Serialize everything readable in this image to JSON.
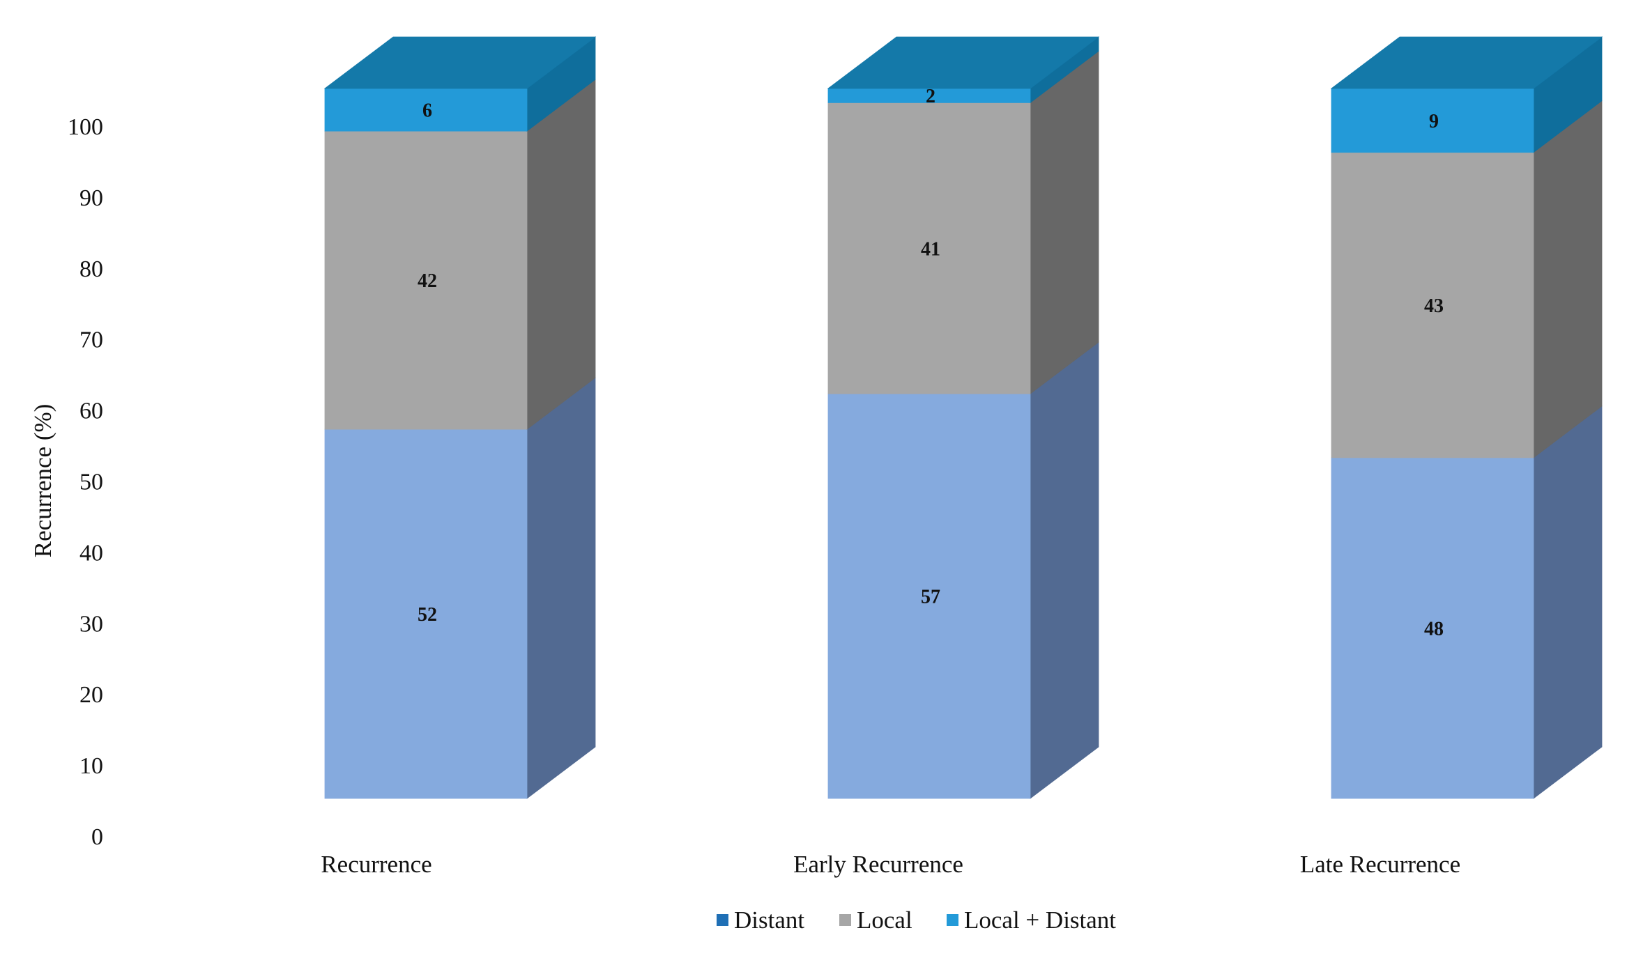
{
  "chart_data": {
    "type": "bar",
    "stacked": true,
    "three_d": true,
    "title": "",
    "xlabel": "",
    "ylabel": "Recurrence (%)",
    "ylim": [
      0,
      100
    ],
    "yticks": [
      "0",
      "10",
      "20",
      "30",
      "40",
      "50",
      "60",
      "70",
      "80",
      "90",
      "100"
    ],
    "categories": [
      "Recurrence",
      "Early Recurrence",
      "Late Recurrence"
    ],
    "series": [
      {
        "name": "Distant",
        "values": [
          52,
          57,
          48
        ],
        "color": "#85aade",
        "side_color": "#526a92",
        "legend_color": "#1f6fb5"
      },
      {
        "name": "Local",
        "values": [
          42,
          41,
          43
        ],
        "color": "#a6a6a6",
        "side_color": "#676767",
        "legend_color": "#a6a6a6"
      },
      {
        "name": "Local + Distant",
        "values": [
          6,
          2,
          9
        ],
        "color": "#239ad8",
        "side_color": "#0f6e9c",
        "legend_color": "#239ad8"
      }
    ],
    "top_face_color": "#1479a9",
    "grid": false,
    "legend_position": "bottom"
  }
}
